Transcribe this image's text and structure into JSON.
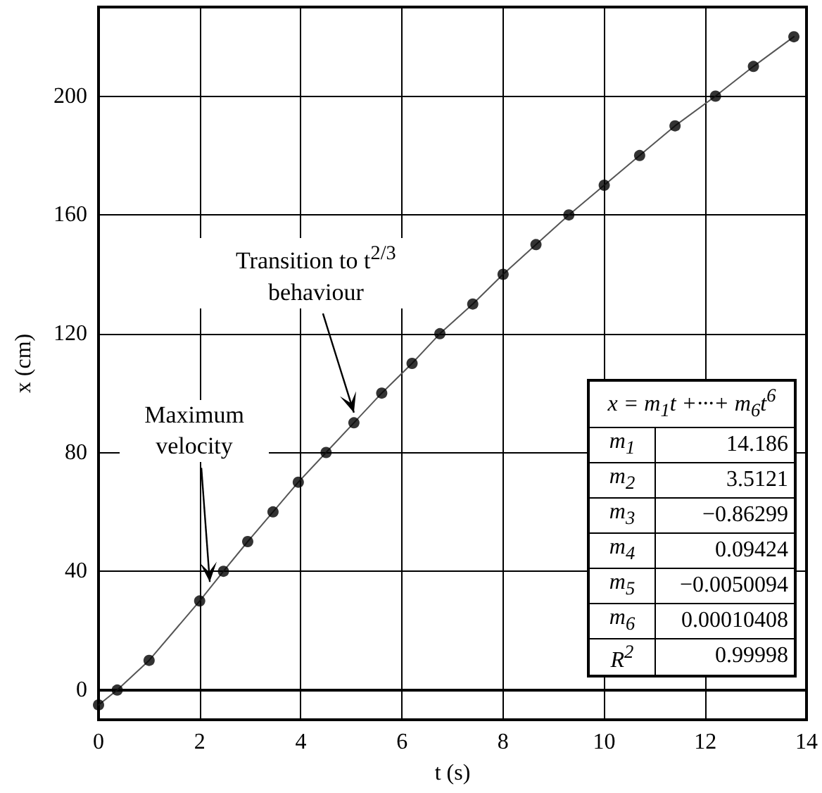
{
  "chart_data": {
    "type": "scatter",
    "xlabel": "t (s)",
    "ylabel": "x (cm)",
    "xlim": [
      0,
      14
    ],
    "xticks": [
      0,
      2,
      4,
      6,
      8,
      10,
      12,
      14
    ],
    "ylim": [
      -10,
      230
    ],
    "yticks": [
      0,
      40,
      80,
      120,
      160,
      200
    ],
    "grid": true,
    "marker": "circle",
    "series": [
      {
        "color": "#000000",
        "x": [
          0,
          0.37,
          1.0,
          2.0,
          2.47,
          2.95,
          3.45,
          3.95,
          4.5,
          5.05,
          5.6,
          6.2,
          6.75,
          7.4,
          8.0,
          8.65,
          9.3,
          10.0,
          10.7,
          11.4,
          12.2,
          12.95,
          13.75
        ],
        "values": [
          -5,
          0,
          10,
          30,
          40,
          50,
          60,
          70,
          80,
          90,
          100,
          110,
          120,
          130,
          140,
          150,
          160,
          170,
          180,
          190,
          200,
          210,
          220
        ]
      },
      {
        "type": "line",
        "color": "#555555",
        "line_style": "solid",
        "marker": "none",
        "x": [
          0,
          0.37,
          1.0,
          2.0,
          2.47,
          2.95,
          3.45,
          3.95,
          4.5,
          5.05,
          5.6,
          6.2,
          6.75,
          7.4,
          8.0,
          8.65,
          9.3,
          10.0,
          10.7,
          11.4,
          12.2,
          12.95,
          13.75
        ],
        "values": [
          -5,
          0,
          10,
          30,
          40,
          50,
          60,
          70,
          80,
          90,
          100,
          110,
          120,
          130,
          140,
          150,
          160,
          170,
          180,
          190,
          200,
          210,
          220
        ]
      }
    ],
    "annotations": [
      {
        "text": "Maximum velocity",
        "x": 2.2,
        "y": 35
      },
      {
        "text": "Transition to t$^{2/3}$ behaviour",
        "x": 5.05,
        "y": 92
      },
      "x = m$_{1}$t +···+ m$_{6}$t$^{6}$",
      "m$_{1}$",
      "14.186",
      "m$_{2}$",
      "3.5121",
      "m$_{3}$",
      "−0.86299",
      "m$_{4}$",
      "0.09424",
      "m$_{5}$",
      "−0.0050094",
      "m$_{6}$",
      "0.00010408",
      "R$^{2}$",
      "0.99998"
    ]
  }
}
